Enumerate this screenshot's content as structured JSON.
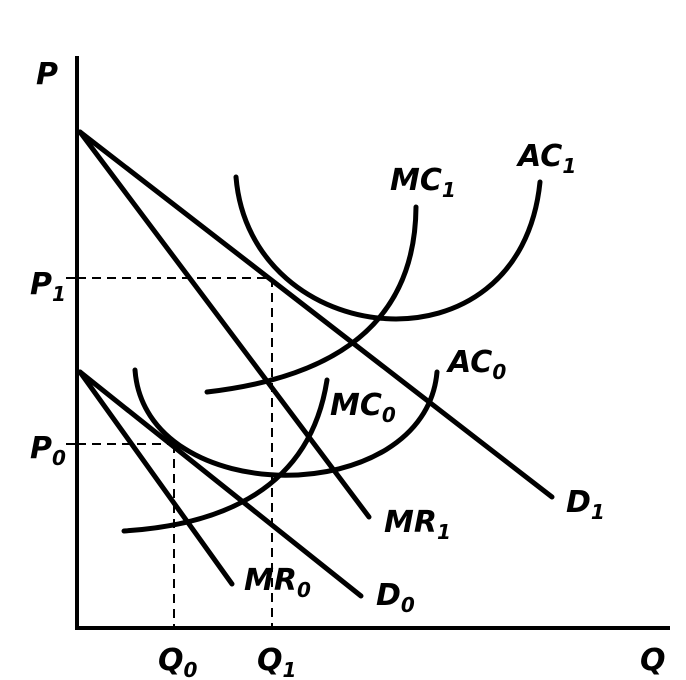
{
  "axes": {
    "y_label": "P",
    "x_label": "Q"
  },
  "price_ticks": [
    {
      "base": "P",
      "sub": "1"
    },
    {
      "base": "P",
      "sub": "0"
    }
  ],
  "quantity_ticks": [
    {
      "base": "Q",
      "sub": "0"
    },
    {
      "base": "Q",
      "sub": "1"
    }
  ],
  "curves": [
    {
      "id": "D1",
      "base": "D",
      "sub": "1"
    },
    {
      "id": "MR1",
      "base": "MR",
      "sub": "1"
    },
    {
      "id": "MC1",
      "base": "MC",
      "sub": "1"
    },
    {
      "id": "AC1",
      "base": "AC",
      "sub": "1"
    },
    {
      "id": "D0",
      "base": "D",
      "sub": "0"
    },
    {
      "id": "MR0",
      "base": "MR",
      "sub": "0"
    },
    {
      "id": "MC0",
      "base": "MC",
      "sub": "0"
    },
    {
      "id": "AC0",
      "base": "AC",
      "sub": "0"
    }
  ]
}
